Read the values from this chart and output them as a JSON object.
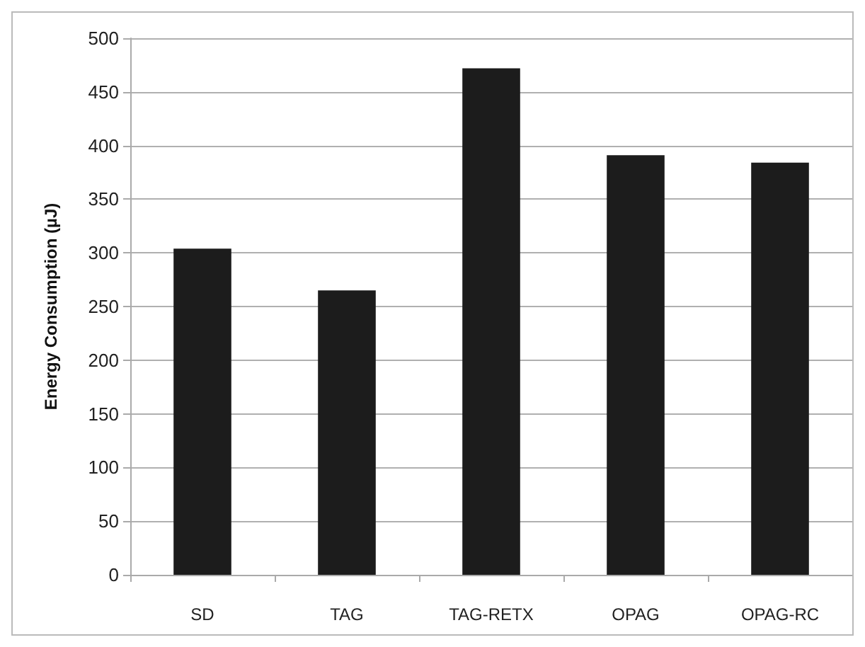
{
  "chart_data": {
    "type": "bar",
    "ylabel": "Energy Consumption (µJ)",
    "categories": [
      "SD",
      "TAG",
      "TAG-RETX",
      "OPAG",
      "OPAG-RC"
    ],
    "values": [
      304,
      265,
      472,
      391,
      384
    ],
    "color": "#1c1c1c",
    "ylim": [
      0,
      500
    ],
    "yticks": [
      0,
      50,
      100,
      150,
      200,
      250,
      300,
      350,
      400,
      450,
      500
    ],
    "grid": "y"
  }
}
